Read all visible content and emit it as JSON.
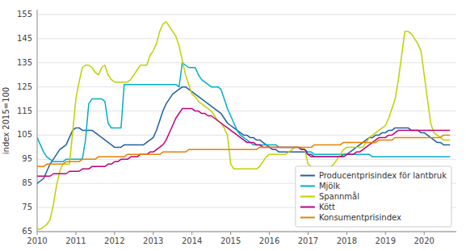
{
  "chart_data": {
    "type": "line",
    "ylabel": "index 2015=100",
    "xlim": [
      2010.0,
      2020.83
    ],
    "xticks": [
      2010,
      2011,
      2012,
      2013,
      2014,
      2015,
      2016,
      2017,
      2018,
      2019,
      2020
    ],
    "ylim": [
      65,
      157
    ],
    "yticks": [
      65,
      75,
      85,
      95,
      105,
      115,
      125,
      135,
      145,
      155
    ],
    "grid": true,
    "legend": "lower right",
    "x": [
      2010.0,
      2010.083,
      2010.167,
      2010.25,
      2010.333,
      2010.417,
      2010.5,
      2010.583,
      2010.667,
      2010.75,
      2010.833,
      2010.917,
      2011.0,
      2011.083,
      2011.167,
      2011.25,
      2011.333,
      2011.417,
      2011.5,
      2011.583,
      2011.667,
      2011.75,
      2011.833,
      2011.917,
      2012.0,
      2012.083,
      2012.167,
      2012.25,
      2012.333,
      2012.417,
      2012.5,
      2012.583,
      2012.667,
      2012.75,
      2012.833,
      2012.917,
      2013.0,
      2013.083,
      2013.167,
      2013.25,
      2013.333,
      2013.417,
      2013.5,
      2013.583,
      2013.667,
      2013.75,
      2013.833,
      2013.917,
      2014.0,
      2014.083,
      2014.167,
      2014.25,
      2014.333,
      2014.417,
      2014.5,
      2014.583,
      2014.667,
      2014.75,
      2014.833,
      2014.917,
      2015.0,
      2015.083,
      2015.167,
      2015.25,
      2015.333,
      2015.417,
      2015.5,
      2015.583,
      2015.667,
      2015.75,
      2015.833,
      2015.917,
      2016.0,
      2016.083,
      2016.167,
      2016.25,
      2016.333,
      2016.417,
      2016.5,
      2016.583,
      2016.667,
      2016.75,
      2016.833,
      2016.917,
      2017.0,
      2017.083,
      2017.167,
      2017.25,
      2017.333,
      2017.417,
      2017.5,
      2017.583,
      2017.667,
      2017.75,
      2017.833,
      2017.917,
      2018.0,
      2018.083,
      2018.167,
      2018.25,
      2018.333,
      2018.417,
      2018.5,
      2018.583,
      2018.667,
      2018.75,
      2018.833,
      2018.917,
      2019.0,
      2019.083,
      2019.167,
      2019.25,
      2019.333,
      2019.417,
      2019.5,
      2019.583,
      2019.667,
      2019.75,
      2019.833,
      2019.917,
      2020.0,
      2020.083,
      2020.167,
      2020.25,
      2020.333,
      2020.417,
      2020.5,
      2020.583,
      2020.667
    ],
    "series": [
      {
        "name": "Producentprisindex för lantbruk",
        "color": "#2060a0",
        "values": [
          85,
          86,
          87,
          90,
          93,
          95,
          97,
          99,
          100,
          101,
          104,
          107,
          108,
          108,
          107,
          107,
          107,
          107,
          106,
          105,
          104,
          103,
          102,
          101,
          100,
          100,
          100,
          101,
          101,
          101,
          101,
          101,
          101,
          101,
          102,
          103,
          104,
          107,
          111,
          115,
          118,
          120,
          122,
          123,
          124,
          125,
          125,
          124,
          123,
          122,
          121,
          120,
          119,
          118,
          117,
          116,
          115,
          114,
          112,
          110,
          109,
          108,
          107,
          106,
          105,
          105,
          104,
          104,
          103,
          103,
          102,
          101,
          100,
          99,
          99,
          98,
          98,
          98,
          98,
          98,
          98,
          98,
          98,
          98,
          97,
          97,
          96,
          96,
          96,
          96,
          96,
          96,
          96,
          96,
          96,
          97,
          97,
          98,
          99,
          100,
          101,
          102,
          103,
          104,
          104,
          105,
          105,
          106,
          106,
          107,
          107,
          108,
          108,
          108,
          108,
          108,
          107,
          107,
          107,
          106,
          106,
          105,
          104,
          103,
          102,
          102,
          101,
          101,
          101
        ]
      },
      {
        "name": "Mjölk",
        "color": "#00aec8",
        "values": [
          104,
          101,
          98,
          96,
          95,
          94,
          94,
          94,
          94,
          95,
          95,
          95,
          95,
          95,
          95,
          103,
          118,
          120,
          120,
          120,
          120,
          119,
          110,
          108,
          108,
          108,
          108,
          126,
          126,
          126,
          126,
          126,
          126,
          126,
          126,
          126,
          126,
          126,
          126,
          126,
          126,
          126,
          126,
          126,
          125,
          135,
          134,
          133,
          133,
          133,
          130,
          128,
          127,
          126,
          125,
          125,
          125,
          124,
          120,
          116,
          113,
          110,
          107,
          105,
          104,
          103,
          102,
          101,
          101,
          101,
          101,
          101,
          101,
          101,
          101,
          100,
          100,
          100,
          100,
          100,
          100,
          100,
          99,
          99,
          98,
          98,
          97,
          97,
          97,
          97,
          97,
          97,
          97,
          97,
          97,
          97,
          97,
          97,
          97,
          97,
          97,
          97,
          97,
          97,
          96,
          96,
          96,
          96,
          96,
          96,
          96,
          96,
          96,
          96,
          96,
          96,
          96,
          96,
          96,
          96,
          96,
          96,
          96,
          96,
          96,
          96,
          96,
          96,
          96
        ]
      },
      {
        "name": "Spannmål",
        "color": "#c0d000",
        "values": [
          66,
          66,
          67,
          68,
          70,
          76,
          84,
          90,
          93,
          93,
          93,
          106,
          120,
          127,
          133,
          134,
          134,
          133,
          131,
          130,
          133,
          134,
          130,
          128,
          127,
          127,
          127,
          127,
          127,
          128,
          130,
          132,
          134,
          134,
          134,
          138,
          140,
          143,
          148,
          151,
          152,
          150,
          148,
          146,
          142,
          136,
          130,
          126,
          122,
          121,
          119,
          118,
          117,
          116,
          115,
          113,
          111,
          110,
          108,
          105,
          93,
          91,
          91,
          91,
          91,
          91,
          91,
          91,
          91,
          92,
          94,
          96,
          97,
          97,
          97,
          97,
          97,
          97,
          98,
          99,
          100,
          100,
          100,
          99,
          93,
          92,
          91,
          91,
          91,
          91,
          91,
          92,
          93,
          95,
          97,
          99,
          100,
          100,
          100,
          100,
          100,
          100,
          102,
          104,
          105,
          106,
          107,
          108,
          109,
          112,
          116,
          120,
          128,
          138,
          148,
          148,
          147,
          145,
          143,
          140,
          130,
          120,
          110,
          106,
          105,
          104,
          103,
          103,
          103
        ]
      },
      {
        "name": "Kött",
        "color": "#c0007a",
        "values": [
          88,
          88,
          88,
          88,
          88,
          89,
          89,
          89,
          89,
          89,
          90,
          90,
          90,
          90,
          91,
          91,
          91,
          92,
          92,
          92,
          92,
          92,
          93,
          93,
          94,
          94,
          95,
          95,
          95,
          96,
          96,
          96,
          97,
          97,
          97,
          98,
          98,
          99,
          100,
          101,
          103,
          106,
          109,
          112,
          114,
          116,
          116,
          116,
          116,
          115,
          115,
          114,
          114,
          113,
          113,
          112,
          111,
          110,
          109,
          108,
          107,
          106,
          105,
          104,
          103,
          102,
          102,
          102,
          101,
          101,
          100,
          100,
          100,
          100,
          100,
          100,
          100,
          100,
          100,
          100,
          100,
          100,
          99,
          99,
          97,
          96,
          96,
          96,
          96,
          96,
          96,
          96,
          96,
          96,
          96,
          96,
          97,
          97,
          97,
          98,
          98,
          99,
          100,
          101,
          102,
          103,
          104,
          104,
          104,
          105,
          105,
          106,
          107,
          107,
          107,
          107,
          107,
          107,
          107,
          107,
          107,
          107,
          107,
          107,
          107,
          107,
          107,
          107,
          107
        ]
      },
      {
        "name": "Konsumentprisindex",
        "color": "#e88000",
        "values": [
          92,
          92,
          92,
          93,
          93,
          93,
          93,
          93,
          93,
          94,
          94,
          94,
          94,
          94,
          95,
          95,
          95,
          95,
          95,
          96,
          96,
          96,
          96,
          96,
          96,
          96,
          96,
          96,
          97,
          97,
          97,
          97,
          97,
          97,
          97,
          97,
          97,
          97,
          97,
          98,
          98,
          98,
          98,
          98,
          98,
          98,
          98,
          99,
          99,
          99,
          99,
          99,
          99,
          99,
          99,
          99,
          99,
          99,
          99,
          99,
          99,
          99,
          99,
          99,
          99,
          99,
          99,
          99,
          99,
          100,
          100,
          100,
          100,
          100,
          100,
          100,
          100,
          100,
          100,
          100,
          100,
          100,
          100,
          100,
          100,
          100,
          101,
          101,
          101,
          101,
          101,
          101,
          101,
          101,
          101,
          102,
          102,
          102,
          102,
          102,
          102,
          102,
          102,
          102,
          102,
          102,
          103,
          103,
          103,
          103,
          103,
          104,
          104,
          104,
          104,
          104,
          104,
          104,
          104,
          104,
          104,
          104,
          104,
          104,
          104,
          104,
          105,
          105,
          105
        ]
      }
    ]
  }
}
